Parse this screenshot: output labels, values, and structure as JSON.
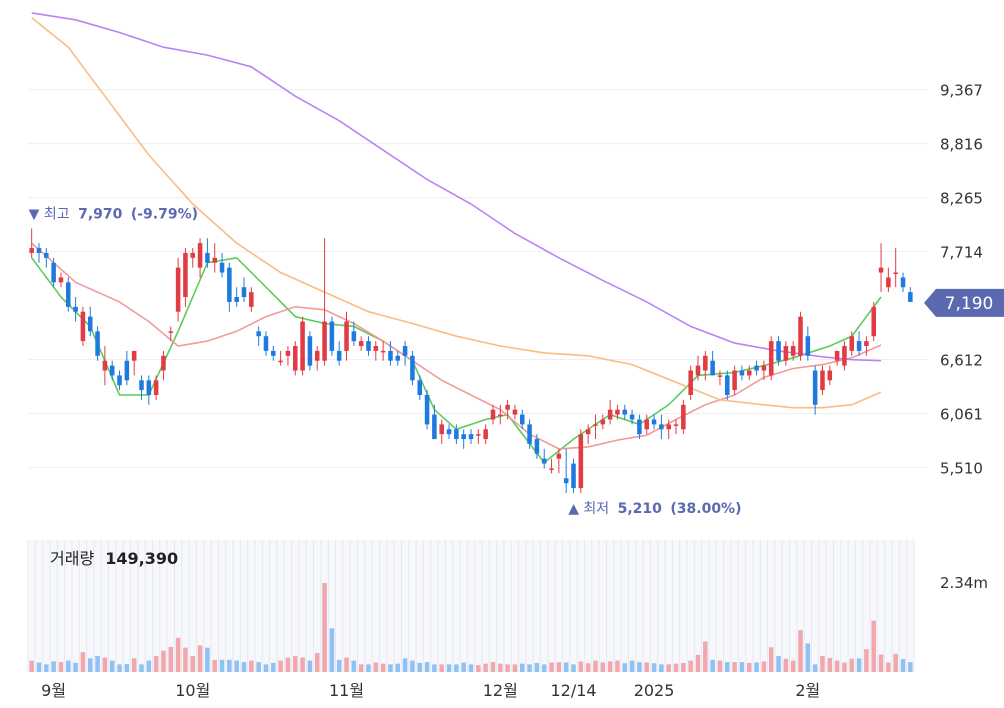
{
  "chart_data": {
    "type": "candlestick",
    "price_axis": {
      "ticks": [
        9367,
        8816,
        8265,
        7714,
        6612,
        6061,
        5510
      ],
      "range": [
        5076,
        10180
      ]
    },
    "current_price": {
      "label": "7,190",
      "value": 7190
    },
    "high_marker": {
      "prefix": "▼ 최고",
      "value": "7,970",
      "pct": "(-9.79%)"
    },
    "low_marker": {
      "prefix": "▲ 최저",
      "value": "5,210",
      "pct": "(38.00%)"
    },
    "volume": {
      "label": "거래량",
      "value": "149,390",
      "axis_tick": "2.34m",
      "axis_max": 2340000
    },
    "x_labels": [
      {
        "text": "9월",
        "index": 3
      },
      {
        "text": "10월",
        "index": 22
      },
      {
        "text": "11월",
        "index": 43
      },
      {
        "text": "12월",
        "index": 64
      },
      {
        "text": "12/14",
        "index": 74
      },
      {
        "text": "2025",
        "index": 85
      },
      {
        "text": "2월",
        "index": 106
      }
    ],
    "colors": {
      "up": "#e23b44",
      "down": "#1f7ae0",
      "vol_up": "#f1a8ad",
      "vol_down": "#8fc2f2",
      "ma5": "#5ccb5a",
      "ma20": "#f39a9a",
      "ma60": "#f7bd82",
      "ma120": "#b884f5",
      "accent": "#5b6ab0"
    },
    "ma_series": [
      {
        "key": "ma5",
        "points": [
          [
            0,
            7650
          ],
          [
            4,
            7250
          ],
          [
            8,
            6950
          ],
          [
            12,
            6250
          ],
          [
            16,
            6250
          ],
          [
            20,
            6900
          ],
          [
            24,
            7600
          ],
          [
            28,
            7650
          ],
          [
            32,
            7350
          ],
          [
            36,
            7050
          ],
          [
            40,
            6980
          ],
          [
            44,
            6950
          ],
          [
            48,
            6800
          ],
          [
            52,
            6600
          ],
          [
            55,
            6100
          ],
          [
            58,
            5900
          ],
          [
            62,
            6000
          ],
          [
            65,
            6050
          ],
          [
            70,
            5560
          ],
          [
            74,
            5800
          ],
          [
            79,
            6050
          ],
          [
            83,
            5950
          ],
          [
            87,
            6150
          ],
          [
            91,
            6450
          ],
          [
            96,
            6480
          ],
          [
            100,
            6550
          ],
          [
            104,
            6630
          ],
          [
            109,
            6750
          ],
          [
            112,
            6850
          ],
          [
            116,
            7250
          ]
        ]
      },
      {
        "key": "ma20",
        "points": [
          [
            0,
            7800
          ],
          [
            6,
            7400
          ],
          [
            12,
            7200
          ],
          [
            16,
            7000
          ],
          [
            20,
            6750
          ],
          [
            24,
            6800
          ],
          [
            28,
            6900
          ],
          [
            32,
            7050
          ],
          [
            36,
            7150
          ],
          [
            40,
            7120
          ],
          [
            44,
            6980
          ],
          [
            48,
            6800
          ],
          [
            52,
            6600
          ],
          [
            56,
            6400
          ],
          [
            60,
            6250
          ],
          [
            64,
            6100
          ],
          [
            68,
            5850
          ],
          [
            72,
            5700
          ],
          [
            76,
            5720
          ],
          [
            80,
            5790
          ],
          [
            84,
            5840
          ],
          [
            88,
            6000
          ],
          [
            92,
            6150
          ],
          [
            96,
            6250
          ],
          [
            100,
            6430
          ],
          [
            104,
            6520
          ],
          [
            108,
            6560
          ],
          [
            112,
            6630
          ],
          [
            116,
            6760
          ]
        ]
      },
      {
        "key": "ma60",
        "points": [
          [
            0,
            10100
          ],
          [
            5,
            9800
          ],
          [
            10,
            9300
          ],
          [
            16,
            8700
          ],
          [
            22,
            8200
          ],
          [
            28,
            7800
          ],
          [
            34,
            7500
          ],
          [
            40,
            7300
          ],
          [
            46,
            7100
          ],
          [
            52,
            6980
          ],
          [
            58,
            6850
          ],
          [
            64,
            6750
          ],
          [
            70,
            6680
          ],
          [
            76,
            6650
          ],
          [
            82,
            6560
          ],
          [
            88,
            6380
          ],
          [
            94,
            6200
          ],
          [
            100,
            6150
          ],
          [
            104,
            6120
          ],
          [
            108,
            6120
          ],
          [
            112,
            6150
          ],
          [
            116,
            6280
          ]
        ]
      },
      {
        "key": "ma120",
        "points": [
          [
            0,
            10150
          ],
          [
            6,
            10080
          ],
          [
            12,
            9950
          ],
          [
            18,
            9800
          ],
          [
            24,
            9720
          ],
          [
            30,
            9600
          ],
          [
            36,
            9300
          ],
          [
            42,
            9050
          ],
          [
            48,
            8750
          ],
          [
            54,
            8450
          ],
          [
            60,
            8200
          ],
          [
            66,
            7900
          ],
          [
            72,
            7650
          ],
          [
            78,
            7420
          ],
          [
            84,
            7200
          ],
          [
            90,
            6950
          ],
          [
            96,
            6780
          ],
          [
            102,
            6700
          ],
          [
            108,
            6640
          ],
          [
            112,
            6610
          ],
          [
            116,
            6600
          ]
        ]
      }
    ],
    "candles": [
      [
        7700,
        7950,
        7650,
        7750,
        300
      ],
      [
        7750,
        7800,
        7600,
        7700,
        250
      ],
      [
        7700,
        7750,
        7550,
        7650,
        200
      ],
      [
        7600,
        7650,
        7350,
        7400,
        280
      ],
      [
        7400,
        7500,
        7350,
        7450,
        260
      ],
      [
        7400,
        7450,
        7100,
        7150,
        300
      ],
      [
        7150,
        7250,
        7000,
        7100,
        240
      ],
      [
        6800,
        7150,
        6750,
        7100,
        520
      ],
      [
        7050,
        7150,
        6850,
        6900,
        360
      ],
      [
        6900,
        6950,
        6600,
        6650,
        420
      ],
      [
        6500,
        6750,
        6350,
        6600,
        380
      ],
      [
        6550,
        6600,
        6400,
        6450,
        300
      ],
      [
        6450,
        6500,
        6300,
        6350,
        200
      ],
      [
        6600,
        6700,
        6350,
        6400,
        210
      ],
      [
        6600,
        6700,
        6450,
        6700,
        360
      ],
      [
        6400,
        6450,
        6200,
        6300,
        200
      ],
      [
        6400,
        6450,
        6150,
        6250,
        300
      ],
      [
        6250,
        6450,
        6200,
        6400,
        420
      ],
      [
        6500,
        6700,
        6400,
        6650,
        560
      ],
      [
        6900,
        6950,
        6800,
        6900,
        660
      ],
      [
        7100,
        7650,
        7000,
        7550,
        900
      ],
      [
        7250,
        7750,
        7150,
        7700,
        640
      ],
      [
        7650,
        7750,
        7550,
        7700,
        420
      ],
      [
        7550,
        7850,
        7450,
        7800,
        700
      ],
      [
        7700,
        7850,
        7550,
        7600,
        640
      ],
      [
        7600,
        7800,
        7500,
        7650,
        320
      ],
      [
        7600,
        7700,
        7450,
        7500,
        320
      ],
      [
        7550,
        7600,
        7100,
        7200,
        320
      ],
      [
        7250,
        7350,
        7150,
        7200,
        300
      ],
      [
        7350,
        7450,
        7200,
        7250,
        260
      ],
      [
        7150,
        7350,
        7100,
        7300,
        300
      ],
      [
        6900,
        6950,
        6750,
        6850,
        260
      ],
      [
        6850,
        6900,
        6650,
        6700,
        200
      ],
      [
        6700,
        6750,
        6600,
        6650,
        240
      ],
      [
        6600,
        6700,
        6550,
        6600,
        300
      ],
      [
        6650,
        6750,
        6550,
        6700,
        380
      ],
      [
        6500,
        6800,
        6450,
        6750,
        420
      ],
      [
        6500,
        7050,
        6450,
        7000,
        380
      ],
      [
        6850,
        6900,
        6500,
        6550,
        300
      ],
      [
        6600,
        6750,
        6500,
        6700,
        500
      ],
      [
        6600,
        7850,
        6550,
        7000,
        2340
      ],
      [
        7000,
        7050,
        6650,
        6700,
        1150
      ],
      [
        6700,
        6800,
        6550,
        6600,
        320
      ],
      [
        6700,
        7100,
        6600,
        7000,
        380
      ],
      [
        6900,
        7000,
        6750,
        6800,
        300
      ],
      [
        6750,
        6850,
        6700,
        6800,
        200
      ],
      [
        6800,
        6850,
        6650,
        6700,
        200
      ],
      [
        6700,
        6800,
        6600,
        6750,
        250
      ],
      [
        6700,
        6800,
        6600,
        6700,
        220
      ],
      [
        6700,
        6800,
        6550,
        6600,
        200
      ],
      [
        6650,
        6700,
        6550,
        6600,
        220
      ],
      [
        6750,
        6800,
        6550,
        6650,
        360
      ],
      [
        6650,
        6700,
        6350,
        6400,
        300
      ],
      [
        6400,
        6450,
        6200,
        6250,
        240
      ],
      [
        6250,
        6300,
        5900,
        5950,
        260
      ],
      [
        6050,
        6150,
        5800,
        5800,
        200
      ],
      [
        5850,
        6000,
        5750,
        5950,
        200
      ],
      [
        5900,
        5950,
        5800,
        5850,
        200
      ],
      [
        5900,
        5950,
        5750,
        5800,
        200
      ],
      [
        5850,
        5900,
        5700,
        5800,
        250
      ],
      [
        5850,
        5900,
        5750,
        5800,
        200
      ],
      [
        5850,
        5900,
        5750,
        5850,
        180
      ],
      [
        5800,
        5950,
        5750,
        5900,
        220
      ],
      [
        6000,
        6150,
        5950,
        6100,
        260
      ],
      [
        6050,
        6150,
        5950,
        6050,
        220
      ],
      [
        6100,
        6200,
        6000,
        6150,
        200
      ],
      [
        6050,
        6150,
        6000,
        6100,
        200
      ],
      [
        6050,
        6100,
        5900,
        5950,
        220
      ],
      [
        5950,
        6000,
        5700,
        5750,
        200
      ],
      [
        5800,
        5850,
        5600,
        5650,
        240
      ],
      [
        5600,
        5700,
        5500,
        5550,
        200
      ],
      [
        5500,
        5600,
        5450,
        5500,
        250
      ],
      [
        5600,
        5700,
        5450,
        5650,
        260
      ],
      [
        5400,
        5700,
        5250,
        5350,
        250
      ],
      [
        5550,
        5600,
        5250,
        5300,
        200
      ],
      [
        5300,
        5900,
        5250,
        5850,
        280
      ],
      [
        5850,
        5950,
        5750,
        5900,
        230
      ],
      [
        5950,
        6050,
        5800,
        5950,
        300
      ],
      [
        5950,
        6050,
        5900,
        6000,
        250
      ],
      [
        6000,
        6200,
        5950,
        6100,
        280
      ],
      [
        6050,
        6150,
        6000,
        6100,
        300
      ],
      [
        6100,
        6150,
        6000,
        6050,
        230
      ],
      [
        6050,
        6100,
        5950,
        6000,
        300
      ],
      [
        6000,
        6050,
        5800,
        5850,
        260
      ],
      [
        5900,
        6050,
        5850,
        6000,
        250
      ],
      [
        6000,
        6050,
        5900,
        5950,
        230
      ],
      [
        5950,
        6050,
        5800,
        5900,
        200
      ],
      [
        5900,
        6000,
        5800,
        5950,
        200
      ],
      [
        5950,
        6000,
        5850,
        5950,
        220
      ],
      [
        5900,
        6200,
        5850,
        6150,
        240
      ],
      [
        6250,
        6550,
        6200,
        6500,
        300
      ],
      [
        6450,
        6650,
        6400,
        6550,
        450
      ],
      [
        6500,
        6700,
        6400,
        6650,
        800
      ],
      [
        6600,
        6700,
        6450,
        6450,
        320
      ],
      [
        6450,
        6500,
        6350,
        6450,
        300
      ],
      [
        6450,
        6500,
        6200,
        6250,
        260
      ],
      [
        6300,
        6550,
        6250,
        6500,
        260
      ],
      [
        6500,
        6550,
        6400,
        6450,
        260
      ],
      [
        6450,
        6550,
        6400,
        6500,
        240
      ],
      [
        6550,
        6600,
        6450,
        6500,
        250
      ],
      [
        6500,
        6600,
        6400,
        6550,
        280
      ],
      [
        6450,
        6850,
        6400,
        6800,
        650
      ],
      [
        6800,
        6850,
        6550,
        6600,
        420
      ],
      [
        6600,
        6800,
        6550,
        6750,
        350
      ],
      [
        6650,
        6800,
        6600,
        6750,
        300
      ],
      [
        6650,
        7100,
        6600,
        7050,
        1100
      ],
      [
        6850,
        6950,
        6600,
        6650,
        750
      ],
      [
        6500,
        6550,
        6050,
        6150,
        200
      ],
      [
        6300,
        6550,
        6250,
        6500,
        420
      ],
      [
        6400,
        6550,
        6350,
        6500,
        370
      ],
      [
        6600,
        6700,
        6550,
        6700,
        300
      ],
      [
        6550,
        6800,
        6500,
        6750,
        250
      ],
      [
        6700,
        6900,
        6650,
        6850,
        350
      ],
      [
        6800,
        6900,
        6650,
        6700,
        360
      ],
      [
        6750,
        6850,
        6650,
        6800,
        600
      ],
      [
        6850,
        7200,
        6800,
        7150,
        1350
      ],
      [
        7500,
        7800,
        7300,
        7550,
        460
      ],
      [
        7350,
        7550,
        7300,
        7450,
        250
      ],
      [
        7500,
        7750,
        7350,
        7500,
        480
      ],
      [
        7450,
        7500,
        7300,
        7350,
        340
      ],
      [
        7300,
        7350,
        7200,
        7200,
        260
      ]
    ]
  }
}
